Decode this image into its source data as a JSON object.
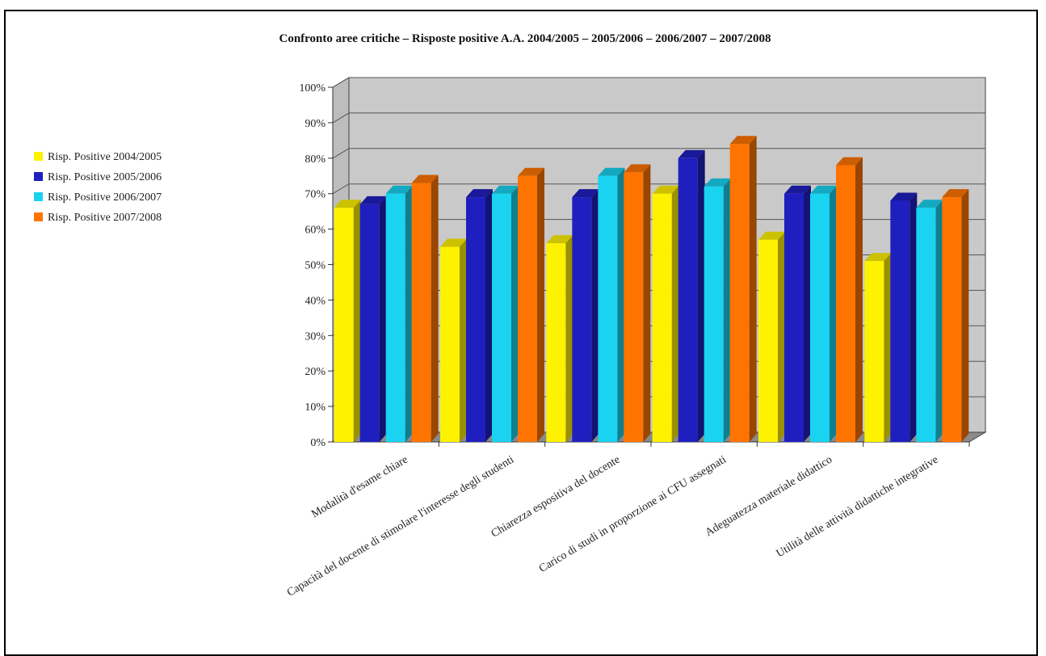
{
  "chart_data": {
    "type": "bar",
    "title": "Confronto aree critiche – Risposte positive A.A. 2004/2005 – 2005/2006 – 2006/2007 – 2007/2008",
    "xlabel": "",
    "ylabel": "",
    "ylim": [
      0,
      100
    ],
    "yticks": [
      "0%",
      "10%",
      "20%",
      "30%",
      "40%",
      "50%",
      "60%",
      "70%",
      "80%",
      "90%",
      "100%"
    ],
    "grid": true,
    "legend_position": "left",
    "categories": [
      "Modalità d'esame chiare",
      "Capacità del docente di stimolare l'interesse degli studenti",
      "Chiarezza espositiva del docente",
      "Carico di studi in proporzione ai CFU assegnati",
      "Adeguatezza materiale didattico",
      "Utilità delle attività didattiche integrative"
    ],
    "series": [
      {
        "name": "Risp. Positive 2004/2005",
        "color": "#FFF200",
        "values": [
          66,
          55,
          56,
          70,
          57,
          51
        ]
      },
      {
        "name": "Risp. Positive 2005/2006",
        "color": "#1F1FBF",
        "values": [
          67,
          69,
          69,
          80,
          70,
          68
        ]
      },
      {
        "name": "Risp. Positive 2006/2007",
        "color": "#19D3F0",
        "values": [
          70,
          70,
          75,
          72,
          70,
          66
        ]
      },
      {
        "name": "Risp. Positive 2007/2008",
        "color": "#FF7400",
        "values": [
          73,
          75,
          76,
          84,
          78,
          69
        ]
      }
    ]
  }
}
